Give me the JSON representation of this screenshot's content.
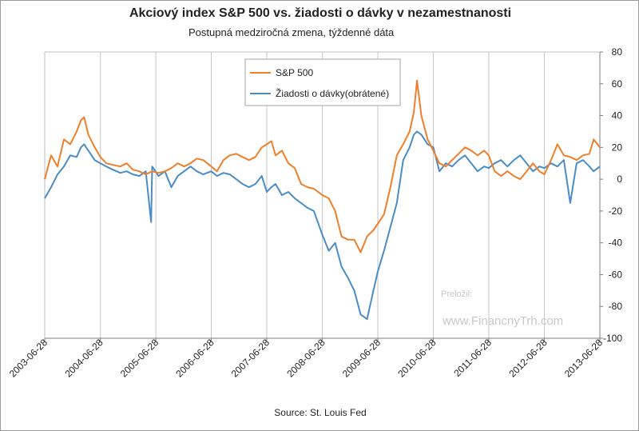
{
  "chart_data": {
    "type": "line",
    "title": "Akciový index S&P 500 vs. žiadosti o dávky v nezamestnanosti",
    "subtitle": "Postupná medziročná zmena, týždenné dáta",
    "source": "Source: St. Louis Fed",
    "watermark_label": "Preložil:",
    "watermark_site": "www.FinancnyTrh.com",
    "x_tick_labels": [
      "2003-06-28",
      "2004-06-28",
      "2005-06-28",
      "2006-06-28",
      "2007-06-28",
      "2008-06-28",
      "2009-06-28",
      "2010-06-28",
      "2011-06-28",
      "2012-06-28",
      "2013-06-28"
    ],
    "xlim": [
      "2003-06-28",
      "2013-06-28"
    ],
    "ylim": [
      -100,
      80
    ],
    "y_ticks": [
      80,
      60,
      40,
      20,
      0,
      -20,
      -40,
      -60,
      -80,
      -100
    ],
    "grid": "vertical",
    "legend_placement": "top-left inside",
    "series": [
      {
        "name": "S&P 500",
        "color": "#f07f2a",
        "points": [
          [
            "2003-06-28",
            0
          ],
          [
            "2003-08-09",
            15
          ],
          [
            "2003-09-20",
            8
          ],
          [
            "2003-11-01",
            25
          ],
          [
            "2003-12-13",
            22
          ],
          [
            "2004-01-24",
            30
          ],
          [
            "2004-02-21",
            37
          ],
          [
            "2004-03-13",
            39
          ],
          [
            "2004-04-10",
            28
          ],
          [
            "2004-05-22",
            20
          ],
          [
            "2004-06-28",
            14
          ],
          [
            "2004-08-07",
            10
          ],
          [
            "2004-09-18",
            9
          ],
          [
            "2004-11-06",
            8
          ],
          [
            "2004-12-18",
            10
          ],
          [
            "2005-01-29",
            6
          ],
          [
            "2005-03-12",
            5
          ],
          [
            "2005-04-23",
            3
          ],
          [
            "2005-06-04",
            5
          ],
          [
            "2005-07-16",
            4
          ],
          [
            "2005-08-27",
            5
          ],
          [
            "2005-10-08",
            7
          ],
          [
            "2005-11-19",
            10
          ],
          [
            "2005-12-31",
            8
          ],
          [
            "2006-02-11",
            10
          ],
          [
            "2006-03-25",
            13
          ],
          [
            "2006-05-06",
            12
          ],
          [
            "2006-06-28",
            8
          ],
          [
            "2006-08-05",
            5
          ],
          [
            "2006-09-16",
            12
          ],
          [
            "2006-10-28",
            15
          ],
          [
            "2006-12-09",
            16
          ],
          [
            "2007-01-20",
            14
          ],
          [
            "2007-03-03",
            12
          ],
          [
            "2007-04-14",
            14
          ],
          [
            "2007-05-26",
            20
          ],
          [
            "2007-06-28",
            22
          ],
          [
            "2007-07-28",
            24
          ],
          [
            "2007-08-25",
            15
          ],
          [
            "2007-10-06",
            18
          ],
          [
            "2007-11-17",
            10
          ],
          [
            "2007-12-29",
            7
          ],
          [
            "2008-02-09",
            -3
          ],
          [
            "2008-03-22",
            -5
          ],
          [
            "2008-05-03",
            -6
          ],
          [
            "2008-06-28",
            -10
          ],
          [
            "2008-08-09",
            -12
          ],
          [
            "2008-09-20",
            -20
          ],
          [
            "2008-11-01",
            -36
          ],
          [
            "2008-12-13",
            -38
          ],
          [
            "2009-01-24",
            -38
          ],
          [
            "2009-03-07",
            -46
          ],
          [
            "2009-04-18",
            -36
          ],
          [
            "2009-05-30",
            -32
          ],
          [
            "2009-06-28",
            -28
          ],
          [
            "2009-08-08",
            -22
          ],
          [
            "2009-09-19",
            -5
          ],
          [
            "2009-10-31",
            15
          ],
          [
            "2009-12-12",
            22
          ],
          [
            "2010-01-23",
            30
          ],
          [
            "2010-02-20",
            42
          ],
          [
            "2010-03-13",
            62
          ],
          [
            "2010-04-10",
            40
          ],
          [
            "2010-05-22",
            25
          ],
          [
            "2010-06-28",
            18
          ],
          [
            "2010-08-07",
            10
          ],
          [
            "2010-09-18",
            8
          ],
          [
            "2010-10-30",
            12
          ],
          [
            "2010-12-11",
            16
          ],
          [
            "2011-01-22",
            20
          ],
          [
            "2011-03-05",
            18
          ],
          [
            "2011-04-16",
            15
          ],
          [
            "2011-05-28",
            18
          ],
          [
            "2011-06-28",
            15
          ],
          [
            "2011-08-06",
            5
          ],
          [
            "2011-09-17",
            2
          ],
          [
            "2011-10-29",
            5
          ],
          [
            "2011-12-10",
            2
          ],
          [
            "2012-01-21",
            0
          ],
          [
            "2012-03-03",
            5
          ],
          [
            "2012-04-14",
            10
          ],
          [
            "2012-05-26",
            5
          ],
          [
            "2012-06-28",
            3
          ],
          [
            "2012-08-11",
            12
          ],
          [
            "2012-09-22",
            22
          ],
          [
            "2012-11-03",
            15
          ],
          [
            "2012-12-15",
            14
          ],
          [
            "2013-01-26",
            12
          ],
          [
            "2013-03-09",
            15
          ],
          [
            "2013-04-20",
            16
          ],
          [
            "2013-05-18",
            25
          ],
          [
            "2013-06-28",
            20
          ]
        ]
      },
      {
        "name": "Žiadosti o dávky(obrátené)",
        "color": "#4a8dc6",
        "points": [
          [
            "2003-06-28",
            -12
          ],
          [
            "2003-08-09",
            -5
          ],
          [
            "2003-09-20",
            3
          ],
          [
            "2003-11-01",
            8
          ],
          [
            "2003-12-13",
            15
          ],
          [
            "2004-01-24",
            14
          ],
          [
            "2004-02-21",
            20
          ],
          [
            "2004-03-13",
            22
          ],
          [
            "2004-04-10",
            18
          ],
          [
            "2004-05-22",
            12
          ],
          [
            "2004-06-28",
            10
          ],
          [
            "2004-08-07",
            8
          ],
          [
            "2004-09-18",
            6
          ],
          [
            "2004-11-06",
            4
          ],
          [
            "2004-12-18",
            5
          ],
          [
            "2005-01-29",
            3
          ],
          [
            "2005-03-12",
            2
          ],
          [
            "2005-04-23",
            5
          ],
          [
            "2005-05-28",
            -27
          ],
          [
            "2005-06-04",
            8
          ],
          [
            "2005-07-16",
            2
          ],
          [
            "2005-08-27",
            5
          ],
          [
            "2005-10-08",
            -5
          ],
          [
            "2005-11-19",
            2
          ],
          [
            "2005-12-31",
            5
          ],
          [
            "2006-02-11",
            8
          ],
          [
            "2006-03-25",
            5
          ],
          [
            "2006-05-06",
            3
          ],
          [
            "2006-06-28",
            5
          ],
          [
            "2006-08-05",
            2
          ],
          [
            "2006-09-16",
            4
          ],
          [
            "2006-10-28",
            3
          ],
          [
            "2006-12-09",
            0
          ],
          [
            "2007-01-20",
            -3
          ],
          [
            "2007-03-03",
            -5
          ],
          [
            "2007-04-14",
            -3
          ],
          [
            "2007-05-26",
            2
          ],
          [
            "2007-06-28",
            -8
          ],
          [
            "2007-07-28",
            -5
          ],
          [
            "2007-08-25",
            -3
          ],
          [
            "2007-10-06",
            -10
          ],
          [
            "2007-11-17",
            -8
          ],
          [
            "2007-12-29",
            -12
          ],
          [
            "2008-02-09",
            -15
          ],
          [
            "2008-03-22",
            -18
          ],
          [
            "2008-05-03",
            -20
          ],
          [
            "2008-06-28",
            -35
          ],
          [
            "2008-08-09",
            -45
          ],
          [
            "2008-09-20",
            -40
          ],
          [
            "2008-11-01",
            -55
          ],
          [
            "2008-12-13",
            -62
          ],
          [
            "2009-01-24",
            -70
          ],
          [
            "2009-03-07",
            -85
          ],
          [
            "2009-04-18",
            -88
          ],
          [
            "2009-05-30",
            -70
          ],
          [
            "2009-06-28",
            -58
          ],
          [
            "2009-08-08",
            -45
          ],
          [
            "2009-09-19",
            -30
          ],
          [
            "2009-10-31",
            -15
          ],
          [
            "2009-12-12",
            12
          ],
          [
            "2010-01-23",
            20
          ],
          [
            "2010-02-20",
            28
          ],
          [
            "2010-03-13",
            30
          ],
          [
            "2010-04-10",
            28
          ],
          [
            "2010-05-22",
            22
          ],
          [
            "2010-06-28",
            20
          ],
          [
            "2010-08-07",
            5
          ],
          [
            "2010-09-18",
            10
          ],
          [
            "2010-10-30",
            8
          ],
          [
            "2010-12-11",
            12
          ],
          [
            "2011-01-22",
            15
          ],
          [
            "2011-03-05",
            10
          ],
          [
            "2011-04-16",
            5
          ],
          [
            "2011-05-28",
            8
          ],
          [
            "2011-06-28",
            7
          ],
          [
            "2011-08-06",
            10
          ],
          [
            "2011-09-17",
            12
          ],
          [
            "2011-10-29",
            8
          ],
          [
            "2011-12-10",
            12
          ],
          [
            "2012-01-21",
            15
          ],
          [
            "2012-03-03",
            10
          ],
          [
            "2012-04-14",
            5
          ],
          [
            "2012-05-26",
            8
          ],
          [
            "2012-06-28",
            7
          ],
          [
            "2012-08-11",
            10
          ],
          [
            "2012-09-22",
            8
          ],
          [
            "2012-11-03",
            12
          ],
          [
            "2012-12-15",
            -15
          ],
          [
            "2013-01-26",
            10
          ],
          [
            "2013-03-09",
            12
          ],
          [
            "2013-04-20",
            8
          ],
          [
            "2013-05-18",
            5
          ],
          [
            "2013-06-28",
            8
          ]
        ]
      }
    ]
  }
}
